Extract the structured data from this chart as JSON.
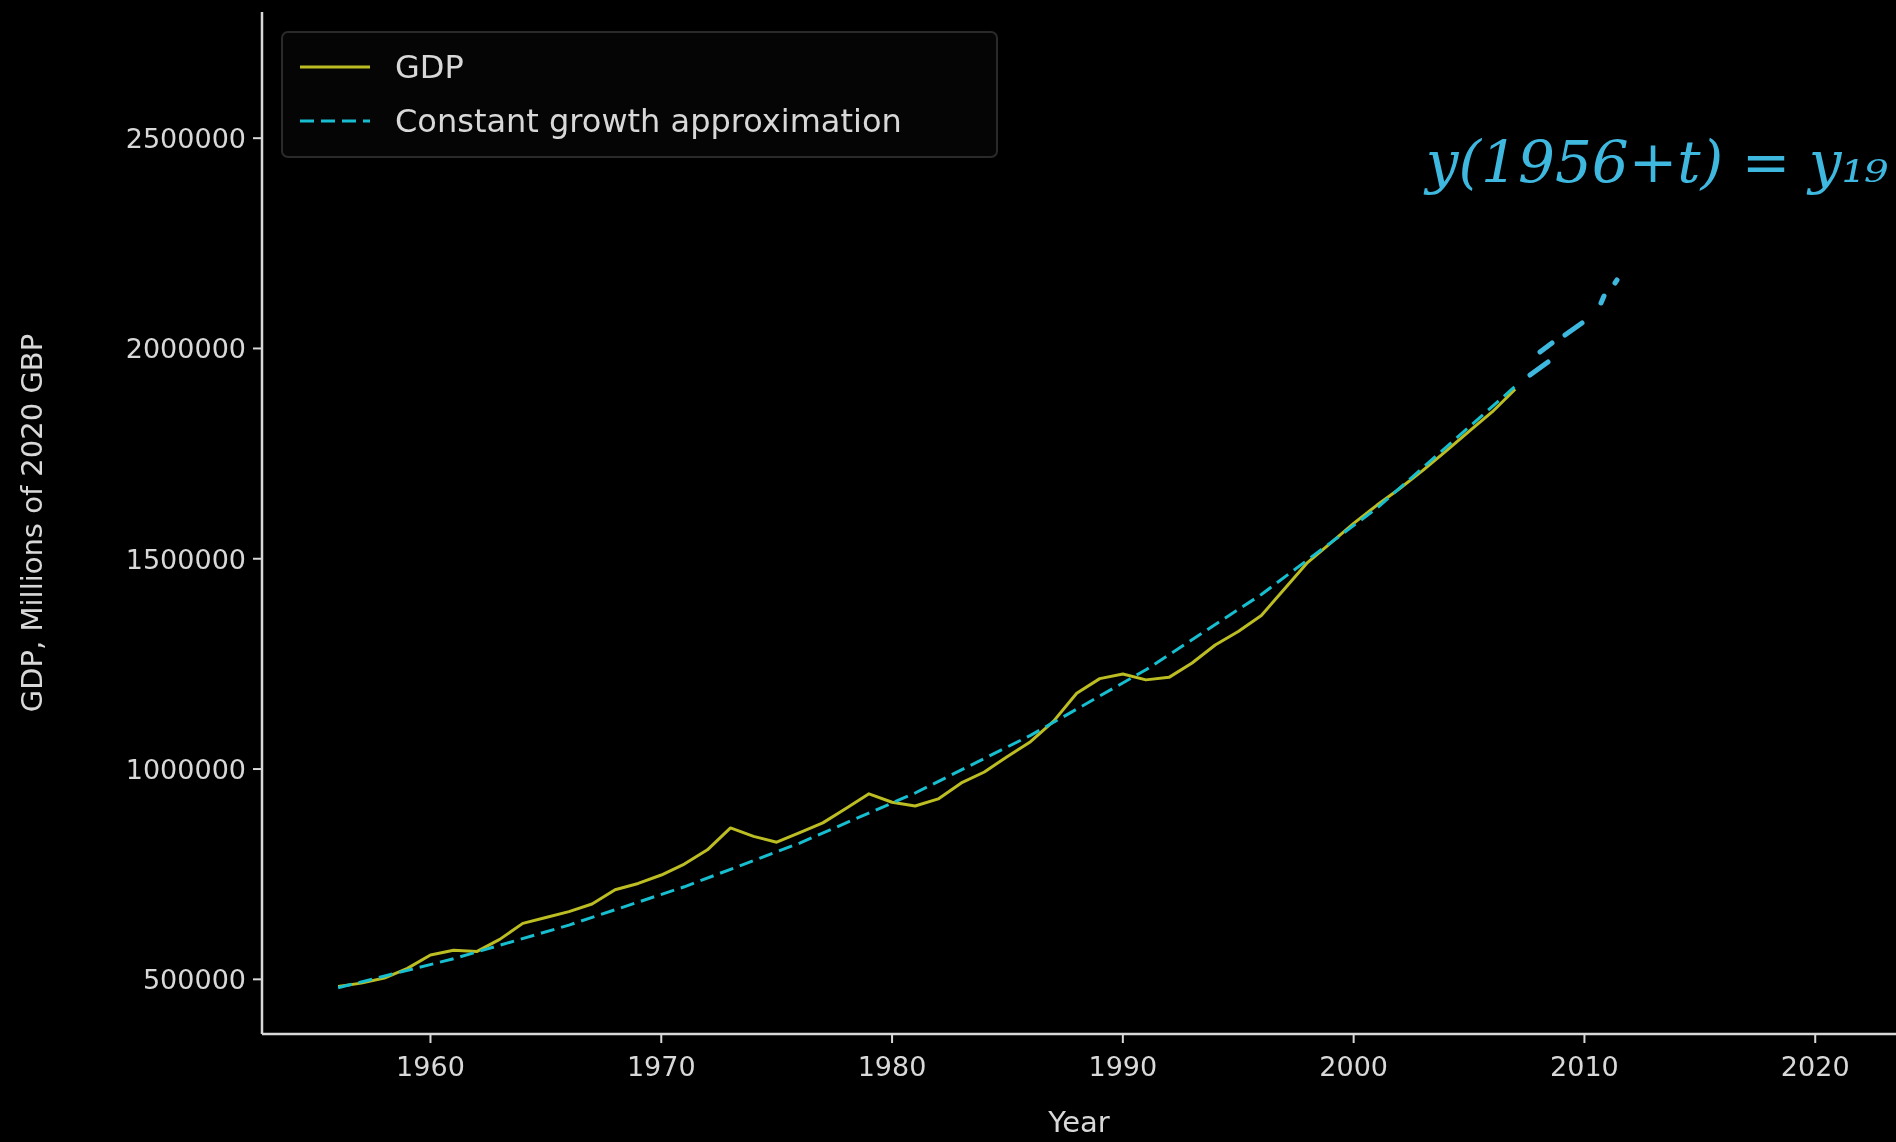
{
  "chart_data": {
    "type": "line",
    "xlabel": "Year",
    "ylabel": "GDP, Millions of 2020 GBP",
    "xlim": [
      1952.7,
      2023.5
    ],
    "ylim": [
      370000,
      2800000
    ],
    "xticks": [
      1960,
      1970,
      1980,
      1990,
      2000,
      2010,
      2020
    ],
    "yticks": [
      500000,
      1000000,
      1500000,
      2000000,
      2500000
    ],
    "legend": "top left",
    "grid": false,
    "annotations": [
      "y(1956+t) = y₁₉"
    ],
    "series": [
      {
        "name": "GDP",
        "color": "#bcbd22",
        "line_style": "solid",
        "x": [
          1956,
          1957,
          1958,
          1959,
          1960,
          1961,
          1962,
          1963,
          1964,
          1965,
          1966,
          1967,
          1968,
          1969,
          1970,
          1971,
          1972,
          1973,
          1974,
          1975,
          1976,
          1977,
          1978,
          1979,
          1980,
          1981,
          1982,
          1983,
          1984,
          1985,
          1986,
          1987,
          1988,
          1989,
          1990,
          1991,
          1992,
          1993,
          1994,
          1995,
          1996,
          1997,
          1998,
          1999,
          2000,
          2001,
          2002,
          2003,
          2004,
          2005,
          2006,
          2007
        ],
        "values": [
          483000,
          491000,
          503000,
          526000,
          558000,
          569000,
          566000,
          595000,
          633000,
          647000,
          661000,
          679000,
          713000,
          728000,
          748000,
          774000,
          808000,
          860000,
          840000,
          826000,
          849000,
          872000,
          906000,
          941000,
          921000,
          912000,
          929000,
          967000,
          993000,
          1030000,
          1065000,
          1114000,
          1180000,
          1215000,
          1226000,
          1212000,
          1218000,
          1252000,
          1295000,
          1327000,
          1365000,
          1428000,
          1491000,
          1537000,
          1584000,
          1627000,
          1667000,
          1710000,
          1756000,
          1803000,
          1849000,
          1903000
        ]
      },
      {
        "name": "Constant growth approximation",
        "color": "#17becf",
        "line_style": "dashed",
        "x": [
          1956,
          1961,
          1966,
          1971,
          1976,
          1981,
          1986,
          1991,
          1996,
          2001,
          2007
        ],
        "values": [
          480000,
          549000,
          629000,
          720000,
          824000,
          943000,
          1080000,
          1236000,
          1415000,
          1620000,
          1910000
        ]
      }
    ]
  }
}
